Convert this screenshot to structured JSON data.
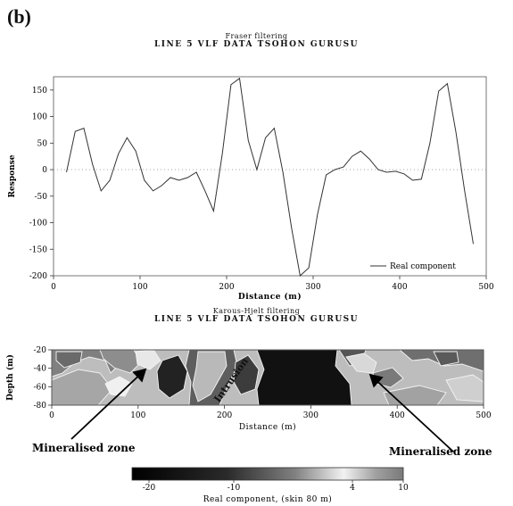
{
  "panel_label": "(b)",
  "chart_data": [
    {
      "type": "line",
      "subtitle": "Fraser filtering",
      "title": "LINE 5 VLF DATA TSOHON GURUSU",
      "xlabel": "Distance (m)",
      "ylabel": "Response",
      "xlim": [
        0,
        500
      ],
      "ylim": [
        -200,
        175
      ],
      "xticks": [
        0,
        100,
        200,
        300,
        400,
        500
      ],
      "yticks": [
        150,
        100,
        50,
        0,
        -50,
        -100,
        -150,
        -200
      ],
      "zero_line": true,
      "legend_position": "bottom-right",
      "series": [
        {
          "name": "Real component",
          "x": [
            15,
            25,
            35,
            45,
            55,
            65,
            75,
            85,
            95,
            105,
            115,
            125,
            135,
            145,
            155,
            165,
            175,
            185,
            195,
            205,
            215,
            225,
            235,
            245,
            255,
            265,
            275,
            285,
            295,
            305,
            315,
            325,
            335,
            345,
            355,
            365,
            375,
            385,
            395,
            405,
            415,
            425,
            435,
            445,
            455,
            465,
            475,
            485
          ],
          "y": [
            -5,
            72,
            78,
            10,
            -40,
            -20,
            30,
            60,
            35,
            -20,
            -40,
            -30,
            -15,
            -20,
            -15,
            -5,
            -40,
            -78,
            30,
            160,
            172,
            55,
            0,
            60,
            78,
            -5,
            -110,
            -200,
            -185,
            -85,
            -10,
            0,
            5,
            25,
            35,
            20,
            0,
            -5,
            -3,
            -8,
            -20,
            -18,
            50,
            148,
            162,
            70,
            -40,
            -140
          ]
        }
      ]
    },
    {
      "type": "heatmap",
      "subtitle": "Karous-Hjelt filtering",
      "title": "LINE 5 VLF DATA TSOHON GURUSU",
      "xlabel": "Distance (m)",
      "ylabel": "Depth (m)",
      "xlim": [
        0,
        500
      ],
      "ylim": [
        -80,
        -20
      ],
      "xticks": [
        0,
        100,
        200,
        300,
        400,
        500
      ],
      "yticks": [
        -20,
        -40,
        -60,
        -80
      ],
      "colorbar": {
        "label": "Real component, (skin   80 m)",
        "ticks": [
          -20,
          -10,
          4,
          10
        ],
        "range": [
          -22,
          10
        ]
      },
      "annotations": {
        "intrusion": "Intrusion",
        "mineralised_left": "Mineralised zone",
        "mineralised_right": "Mineralised zone"
      }
    }
  ]
}
